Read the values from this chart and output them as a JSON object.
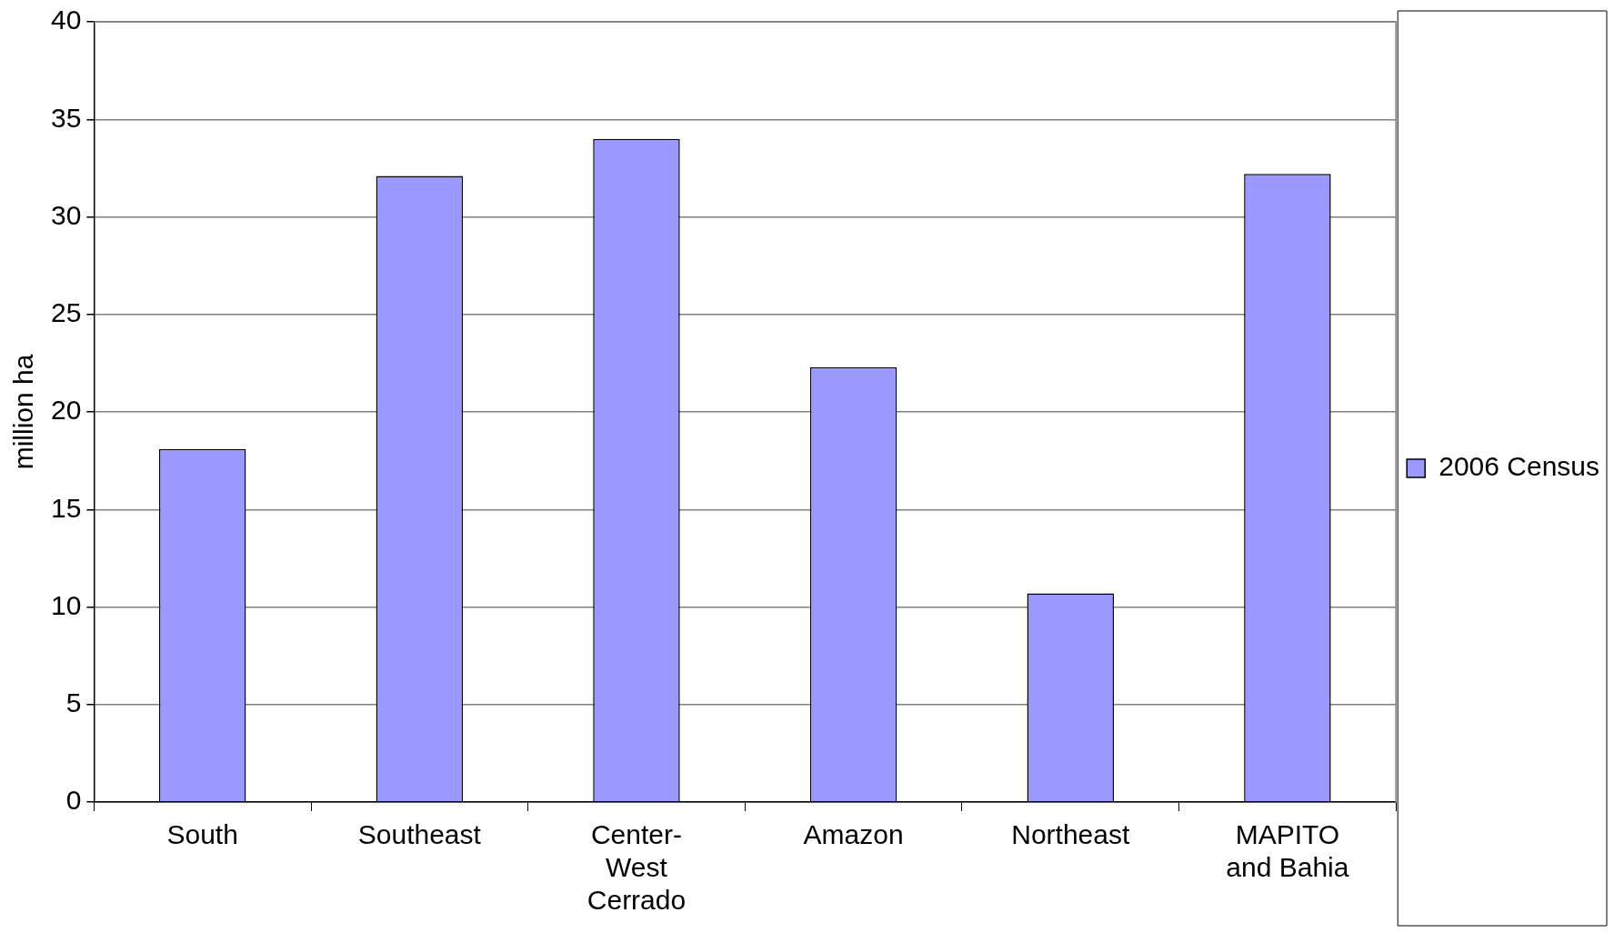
{
  "chart_data": {
    "type": "bar",
    "ylabel": "million ha",
    "categories": [
      "South",
      "Southeast",
      "Center-West Cerrado",
      "Amazon",
      "Northeast",
      "MAPITO and Bahia"
    ],
    "series": [
      {
        "name": "2006 Census",
        "color": "#9999ff",
        "values": [
          18.1,
          32.1,
          34.0,
          22.3,
          10.7,
          32.2
        ]
      }
    ],
    "ylim": [
      0,
      40
    ],
    "yticks": [
      0,
      5,
      10,
      15,
      20,
      25,
      30,
      35,
      40
    ],
    "grid": "y",
    "legend": "right"
  }
}
